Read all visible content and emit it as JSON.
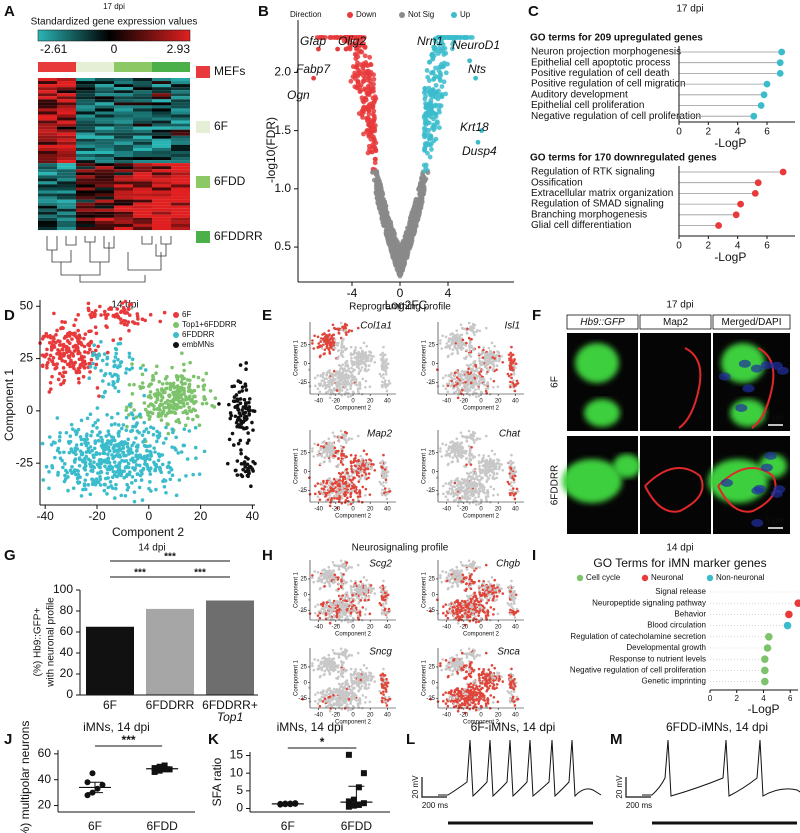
{
  "panels": {
    "A": {
      "label": "A",
      "subtitle": "17 dpi",
      "scale_title": "Standardized gene expression values",
      "scale_labels": [
        "-2.61",
        "0",
        "2.93"
      ],
      "groups": [
        {
          "name": "MEFs",
          "color": "#e8393b"
        },
        {
          "name": "6F",
          "color": "#e4efd6"
        },
        {
          "name": "6FDD",
          "color": "#8cc864"
        },
        {
          "name": "6FDDRR",
          "color": "#4bb04a"
        }
      ]
    },
    "B": {
      "label": "B",
      "legend_title": "Direction",
      "legend": [
        {
          "name": "Down",
          "color": "#e8393b"
        },
        {
          "name": "Not Sig",
          "color": "#8a8a8a"
        },
        {
          "name": "Up",
          "color": "#3bbccc"
        }
      ],
      "ylabel": "-log10(FDR)",
      "xlabel": "Log2FC",
      "xlim": [
        -8.5,
        9.5
      ],
      "ylim": [
        0.2,
        2.45
      ],
      "xticks": [
        -4,
        0,
        4
      ],
      "yticks": [
        0.5,
        {
          "value": 1,
          "label": "1.0"
        },
        1.5,
        {
          "value": 2,
          "label": "2.0"
        }
      ],
      "genes": [
        "Gfap",
        "Olig2",
        "Fabp7",
        "Ogn",
        "Nrn1",
        "NeuroD1",
        "Nts",
        "Krt18",
        "Dusp4"
      ]
    },
    "C": {
      "label": "C",
      "subtitle": "17 dpi",
      "xlabel": "-LogP",
      "xlim": [
        0,
        7.5
      ],
      "xticks": [
        0,
        2,
        4,
        6
      ],
      "up": {
        "title": "GO terms for 209 upregulated genes",
        "color": "#3bbccc",
        "categories": [
          "Neuron projection morphogenesis",
          "Epithelial cell apoptotic process",
          "Positive regulation of cell death",
          "Positive regulation of cell migration",
          "Auditory development",
          "Epithelial cell proliferation",
          "Negative regulation of cell proliferation"
        ],
        "values": [
          7.0,
          6.9,
          6.9,
          6.0,
          5.8,
          5.6,
          5.1
        ]
      },
      "down": {
        "title": "GO terms for 170 downregulated genes",
        "color": "#e8393b",
        "categories": [
          "Regulation of RTK signaling",
          "Ossification",
          "Extracellular matrix organization",
          "Regulation of SMAD signaling",
          "Branching morphogenesis",
          "Glial cell differentiation"
        ],
        "values": [
          7.1,
          5.4,
          5.2,
          4.2,
          3.9,
          2.7
        ]
      }
    },
    "D": {
      "label": "D",
      "subtitle": "14 dpi",
      "legend": [
        {
          "name": "6F",
          "color": "#e8393b"
        },
        {
          "name": "Top1+6FDDRR",
          "color": "#7cc36b"
        },
        {
          "name": "6FDDRR",
          "color": "#3bbccc"
        },
        {
          "name": "embMNs",
          "color": "#111111"
        }
      ],
      "ylabel": "Component 1",
      "xlabel": "Component 2",
      "xlim": [
        -42,
        41
      ],
      "ylim": [
        -45,
        53
      ],
      "xticks": [
        -40,
        -20,
        0,
        20,
        40
      ],
      "yticks": [
        50,
        25,
        0,
        -25
      ]
    },
    "tsne_axes": {
      "ylabel": "Component 1",
      "xlabel": "Component 2",
      "xlim": [
        -50,
        50
      ],
      "ylim": [
        -40,
        55
      ],
      "xticks": [
        -40,
        -20,
        0,
        20,
        40
      ],
      "yticks": [
        -25,
        0,
        25
      ]
    },
    "E": {
      "label": "E",
      "title": "Reprogramming profile",
      "genes": [
        "Col1a1",
        "Isl1",
        "Map2",
        "Chat"
      ]
    },
    "F": {
      "label": "F",
      "subtitle": "17 dpi",
      "channels": [
        "Hb9::GFP",
        "Map2",
        "Merged/DAPI"
      ],
      "rows": [
        "6F",
        "6FDDRR"
      ],
      "scale": "5 µm"
    },
    "G": {
      "label": "G",
      "subtitle": "14 dpi",
      "ylabel": [
        "(%) Hb9::GFP+",
        "with neuronal profile"
      ],
      "categories": [
        [
          "6F"
        ],
        [
          "6FDDRR"
        ],
        [
          "6FDDRR+",
          "Top1"
        ]
      ],
      "values": [
        65,
        82,
        90
      ],
      "colors": [
        "#111111",
        "#a6a6a6",
        "#6e6e6e"
      ],
      "ylim": [
        0,
        100
      ],
      "yticks": [
        0,
        20,
        40,
        60,
        80,
        100
      ],
      "stars": [
        "***",
        "***",
        "***"
      ]
    },
    "H": {
      "label": "H",
      "title": "Neurosignaling profile",
      "genes": [
        "Scg2",
        "Chgb",
        "Sncg",
        "Snca"
      ]
    },
    "I": {
      "label": "I",
      "subtitle": "14 dpi",
      "title": "GO Terms for iMN marker genes",
      "legend": [
        {
          "name": "Cell cycle",
          "color": "#7cc36b"
        },
        {
          "name": "Neuronal",
          "color": "#e8393b"
        },
        {
          "name": "Non-neuronal",
          "color": "#3bbccc"
        }
      ],
      "categories": [
        "Signal release",
        "Neuropeptide signaling pathway",
        "Behavior",
        "Blood circulation",
        "Regulation of catecholamine secretion",
        "Developmental growth",
        "Response to nutrient levels",
        "Negative regulation of cell proliferation",
        "Genetic imprinting"
      ],
      "values": [
        8.1,
        6.6,
        5.9,
        5.8,
        4.4,
        4.3,
        4.1,
        4.1,
        4.1
      ],
      "colors": [
        "#e8393b",
        "#e8393b",
        "#e8393b",
        "#3bbccc",
        "#7cc36b",
        "#7cc36b",
        "#7cc36b",
        "#7cc36b",
        "#7cc36b"
      ],
      "xlabel": "-LogP",
      "xlim": [
        0,
        8.6
      ],
      "xticks": [
        0,
        2,
        4,
        6,
        8
      ]
    },
    "J": {
      "label": "J",
      "title": "iMNs, 14 dpi",
      "ylabel": "(%) multipolar neurons",
      "categories": [
        "6F",
        "6FDD"
      ],
      "ylim": [
        15,
        63
      ],
      "yticks": [
        20,
        40,
        60
      ],
      "stars": "***",
      "series": [
        {
          "values": [
            28,
            30,
            33,
            36,
            38,
            45
          ],
          "center": 34,
          "low": 30,
          "high": 38
        },
        {
          "values": [
            46,
            47,
            48,
            48,
            49,
            50,
            51
          ],
          "center": 48.5,
          "low": 47,
          "high": 50
        }
      ]
    },
    "K": {
      "label": "K",
      "title": "iMNs, 14 dpi",
      "ylabel": "SFA ratio",
      "categories": [
        "6F",
        "6FDD"
      ],
      "ylim": [
        -1,
        16
      ],
      "yticks": [
        0,
        5,
        10,
        15
      ],
      "stars": "*",
      "series": [
        {
          "values": [
            1.1,
            1.2,
            1.2,
            1.3,
            1.3,
            1.4,
            1.4,
            1.5
          ],
          "center": 1.3,
          "low": 1.1,
          "high": 1.5
        },
        {
          "values": [
            0.5,
            0.8,
            1.0,
            1.5,
            2.0,
            2.5,
            6.0,
            10.0,
            15.2
          ],
          "center": 1.8,
          "low": 1.0,
          "high": 6.3
        }
      ]
    },
    "L": {
      "label": "L",
      "title": "6F-iMNs, 14 dpi",
      "scale_v": "20 mV",
      "scale_t": "200 ms"
    },
    "M": {
      "label": "M",
      "title": "6FDD-iMNs, 14 dpi",
      "scale_v": "20 mV",
      "scale_t": "200 ms"
    }
  }
}
